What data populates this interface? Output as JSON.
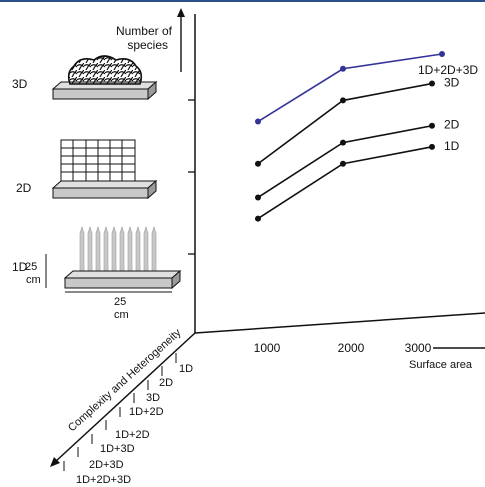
{
  "colors": {
    "frame": "#2b4f8a",
    "axis": "#111111",
    "series_black": "#111111",
    "series_blue": "#333399",
    "plate": "#c8c8c8",
    "rod": "#c0c0c0"
  },
  "y_axis": {
    "label_line1": "Number of",
    "label_line2": "species"
  },
  "x_axis": {
    "label": "Surface area",
    "ticks": [
      "1000",
      "2000",
      "3000"
    ]
  },
  "z_axis": {
    "label": "Complexity and Heterogeneity",
    "categories": [
      "1D",
      "2D",
      "3D",
      "1D+2D",
      "1D+2D",
      "1D+3D",
      "2D+3D",
      "1D+2D+3D"
    ]
  },
  "structures": {
    "label_3d": "3D",
    "label_2d": "2D",
    "label_1d": "1D",
    "height_value": "25",
    "height_unit": "cm",
    "width_value": "25",
    "width_unit": "cm"
  },
  "chart_data": {
    "type": "line",
    "xlabel": "Surface area",
    "ylabel": "Number of species",
    "x_ticks": [
      1000,
      2000,
      3000
    ],
    "series": [
      {
        "name": "1D+2D+3D",
        "x": [
          1000,
          2000,
          3000
        ],
        "y": [
          0.68,
          0.93,
          1.0
        ],
        "color": "#333399"
      },
      {
        "name": "3D",
        "x": [
          1000,
          2000,
          3000
        ],
        "y": [
          0.48,
          0.78,
          0.86
        ],
        "color": "#111111"
      },
      {
        "name": "2D",
        "x": [
          1000,
          2000,
          3000
        ],
        "y": [
          0.32,
          0.58,
          0.66
        ],
        "color": "#111111"
      },
      {
        "name": "1D",
        "x": [
          1000,
          2000,
          3000
        ],
        "y": [
          0.22,
          0.48,
          0.56
        ],
        "color": "#111111"
      }
    ]
  }
}
